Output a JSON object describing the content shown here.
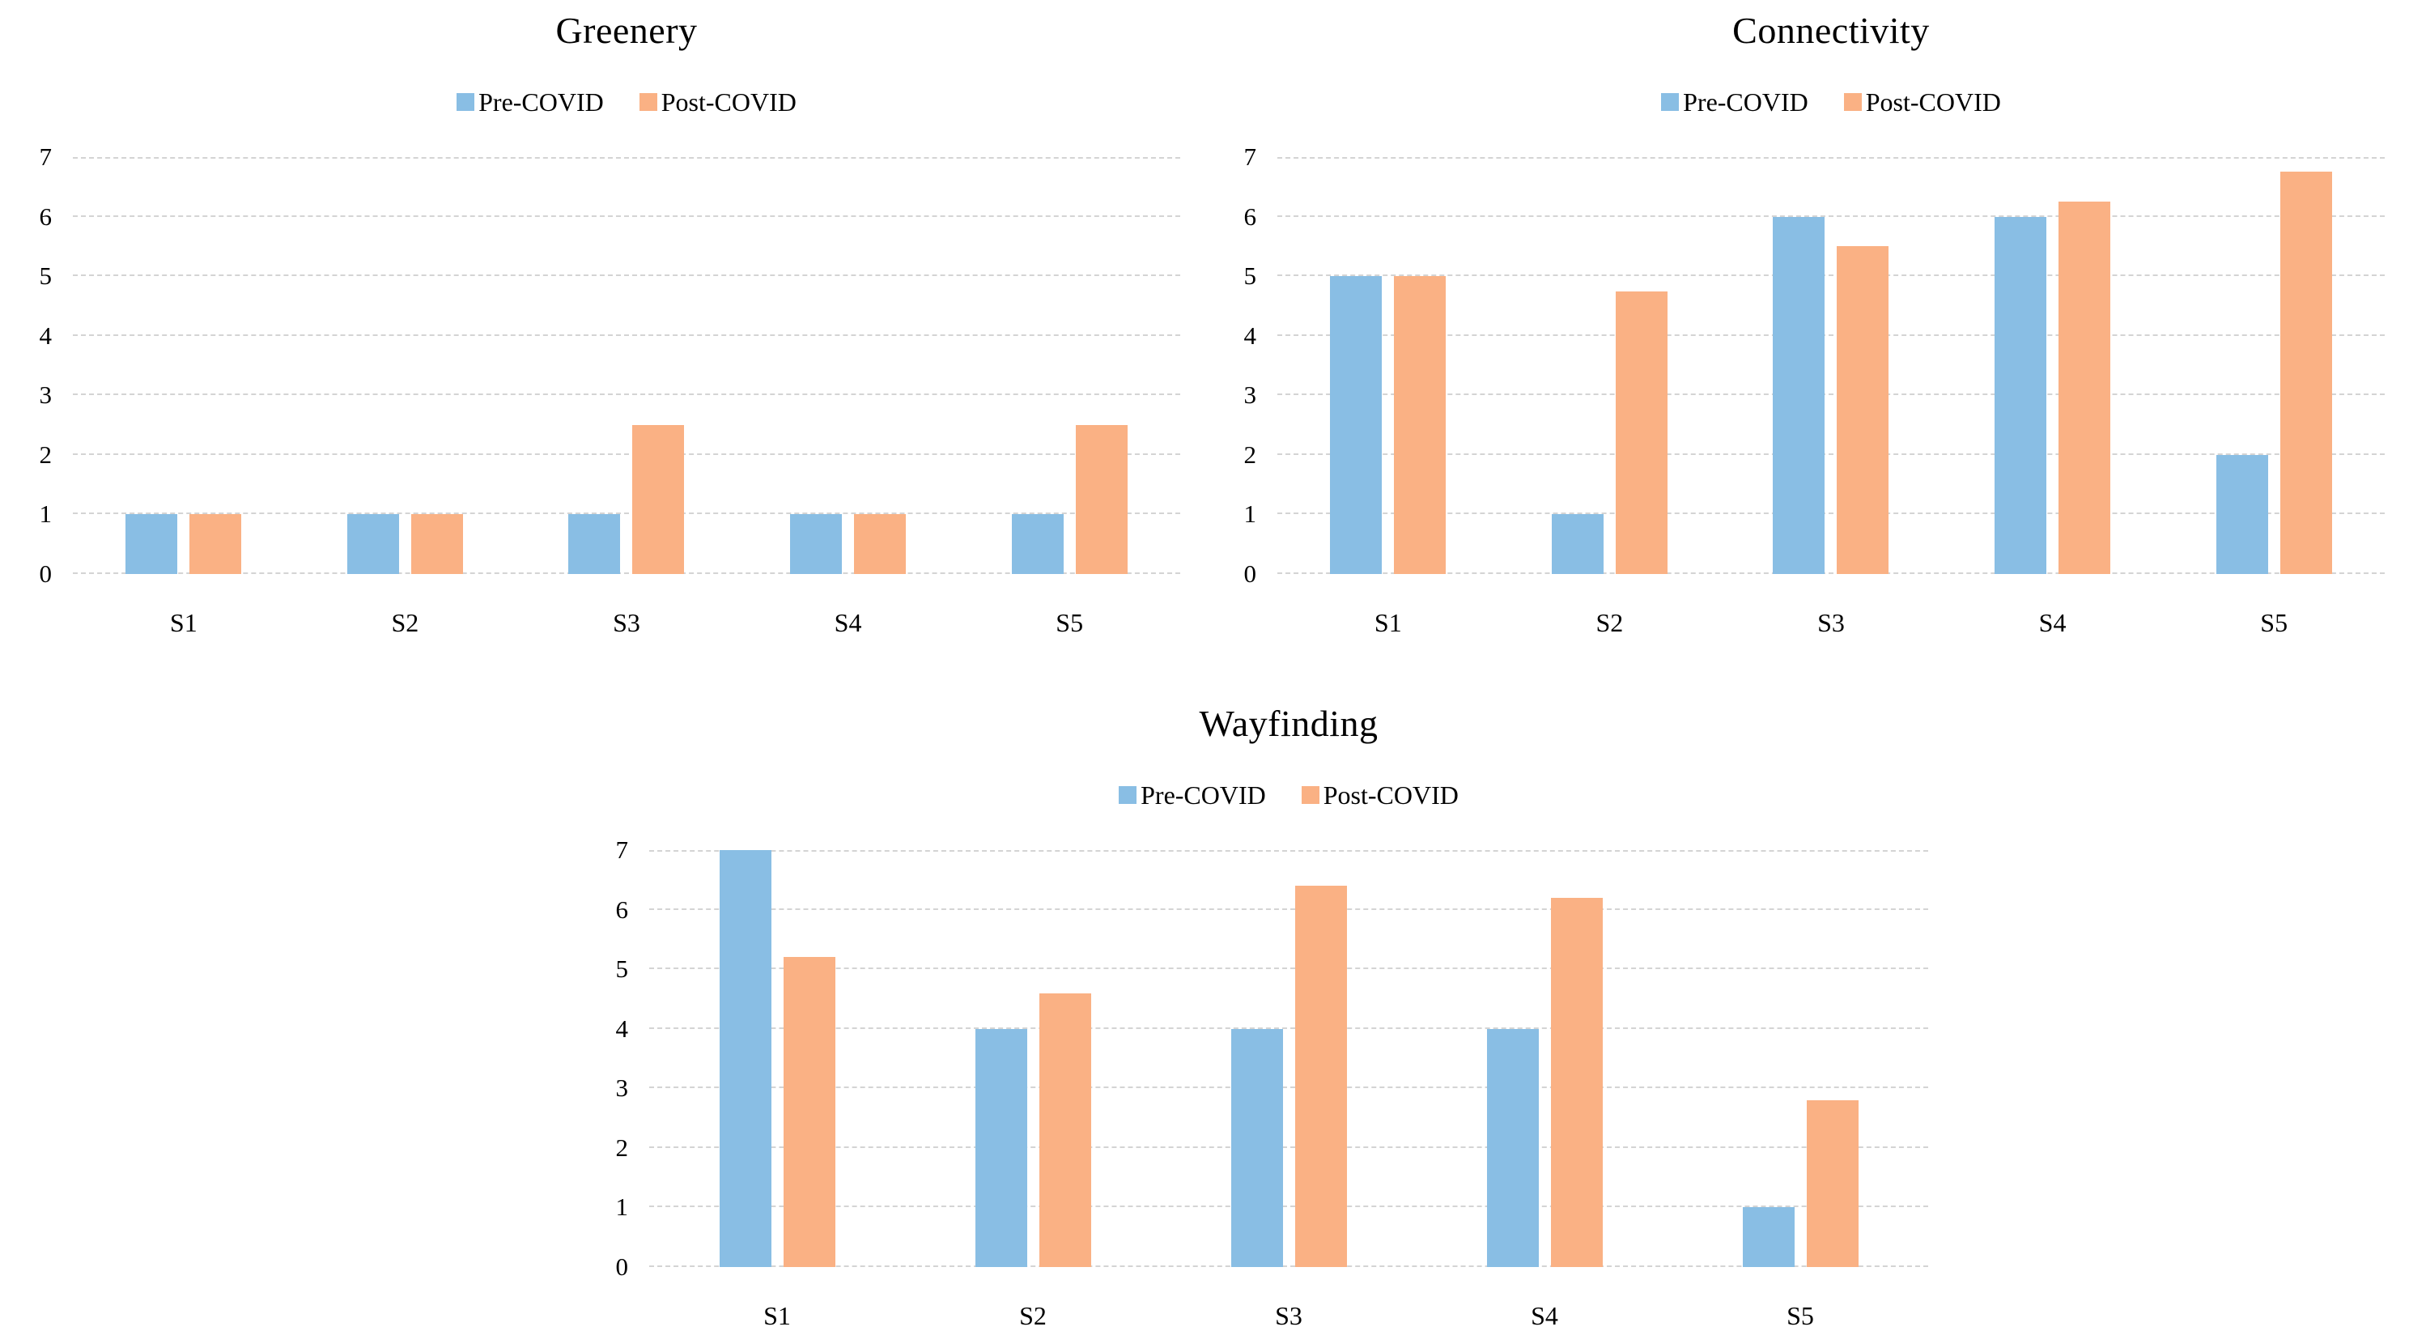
{
  "figure": {
    "background": "#ffffff",
    "text_color": "#000000",
    "gridline_color": "#d4d4d4"
  },
  "series_colors": [
    "#89BEE4",
    "#FAB184"
  ],
  "legend_labels": [
    "Pre-COVID",
    "Post-COVID"
  ],
  "chart_data": [
    {
      "type": "bar",
      "title": "Greenery",
      "categories": [
        "S1",
        "S2",
        "S3",
        "S4",
        "S5"
      ],
      "series": [
        {
          "name": "Pre-COVID",
          "values": [
            1,
            1,
            1,
            1,
            1
          ]
        },
        {
          "name": "Post-COVID",
          "values": [
            1,
            1,
            2.5,
            1,
            2.5
          ]
        }
      ],
      "ylim": [
        0,
        7
      ],
      "yticks": [
        0,
        1,
        2,
        3,
        4,
        5,
        6,
        7
      ],
      "xlabel": "",
      "ylabel": "",
      "grid": true,
      "legend_position": "top"
    },
    {
      "type": "bar",
      "title": "Connectivity",
      "categories": [
        "S1",
        "S2",
        "S3",
        "S4",
        "S5"
      ],
      "series": [
        {
          "name": "Pre-COVID",
          "values": [
            5,
            1,
            6,
            6,
            2
          ]
        },
        {
          "name": "Post-COVID",
          "values": [
            5,
            4.75,
            5.5,
            6.25,
            6.75
          ]
        }
      ],
      "ylim": [
        0,
        7
      ],
      "yticks": [
        0,
        1,
        2,
        3,
        4,
        5,
        6,
        7
      ],
      "xlabel": "",
      "ylabel": "",
      "grid": true,
      "legend_position": "top"
    },
    {
      "type": "bar",
      "title": "Wayfinding",
      "categories": [
        "S1",
        "S2",
        "S3",
        "S4",
        "S5"
      ],
      "series": [
        {
          "name": "Pre-COVID",
          "values": [
            7,
            4,
            4,
            4,
            1
          ]
        },
        {
          "name": "Post-COVID",
          "values": [
            5.2,
            4.6,
            6.4,
            6.2,
            2.8
          ]
        }
      ],
      "ylim": [
        0,
        7
      ],
      "yticks": [
        0,
        1,
        2,
        3,
        4,
        5,
        6,
        7
      ],
      "xlabel": "",
      "ylabel": "",
      "grid": true,
      "legend_position": "top"
    }
  ]
}
